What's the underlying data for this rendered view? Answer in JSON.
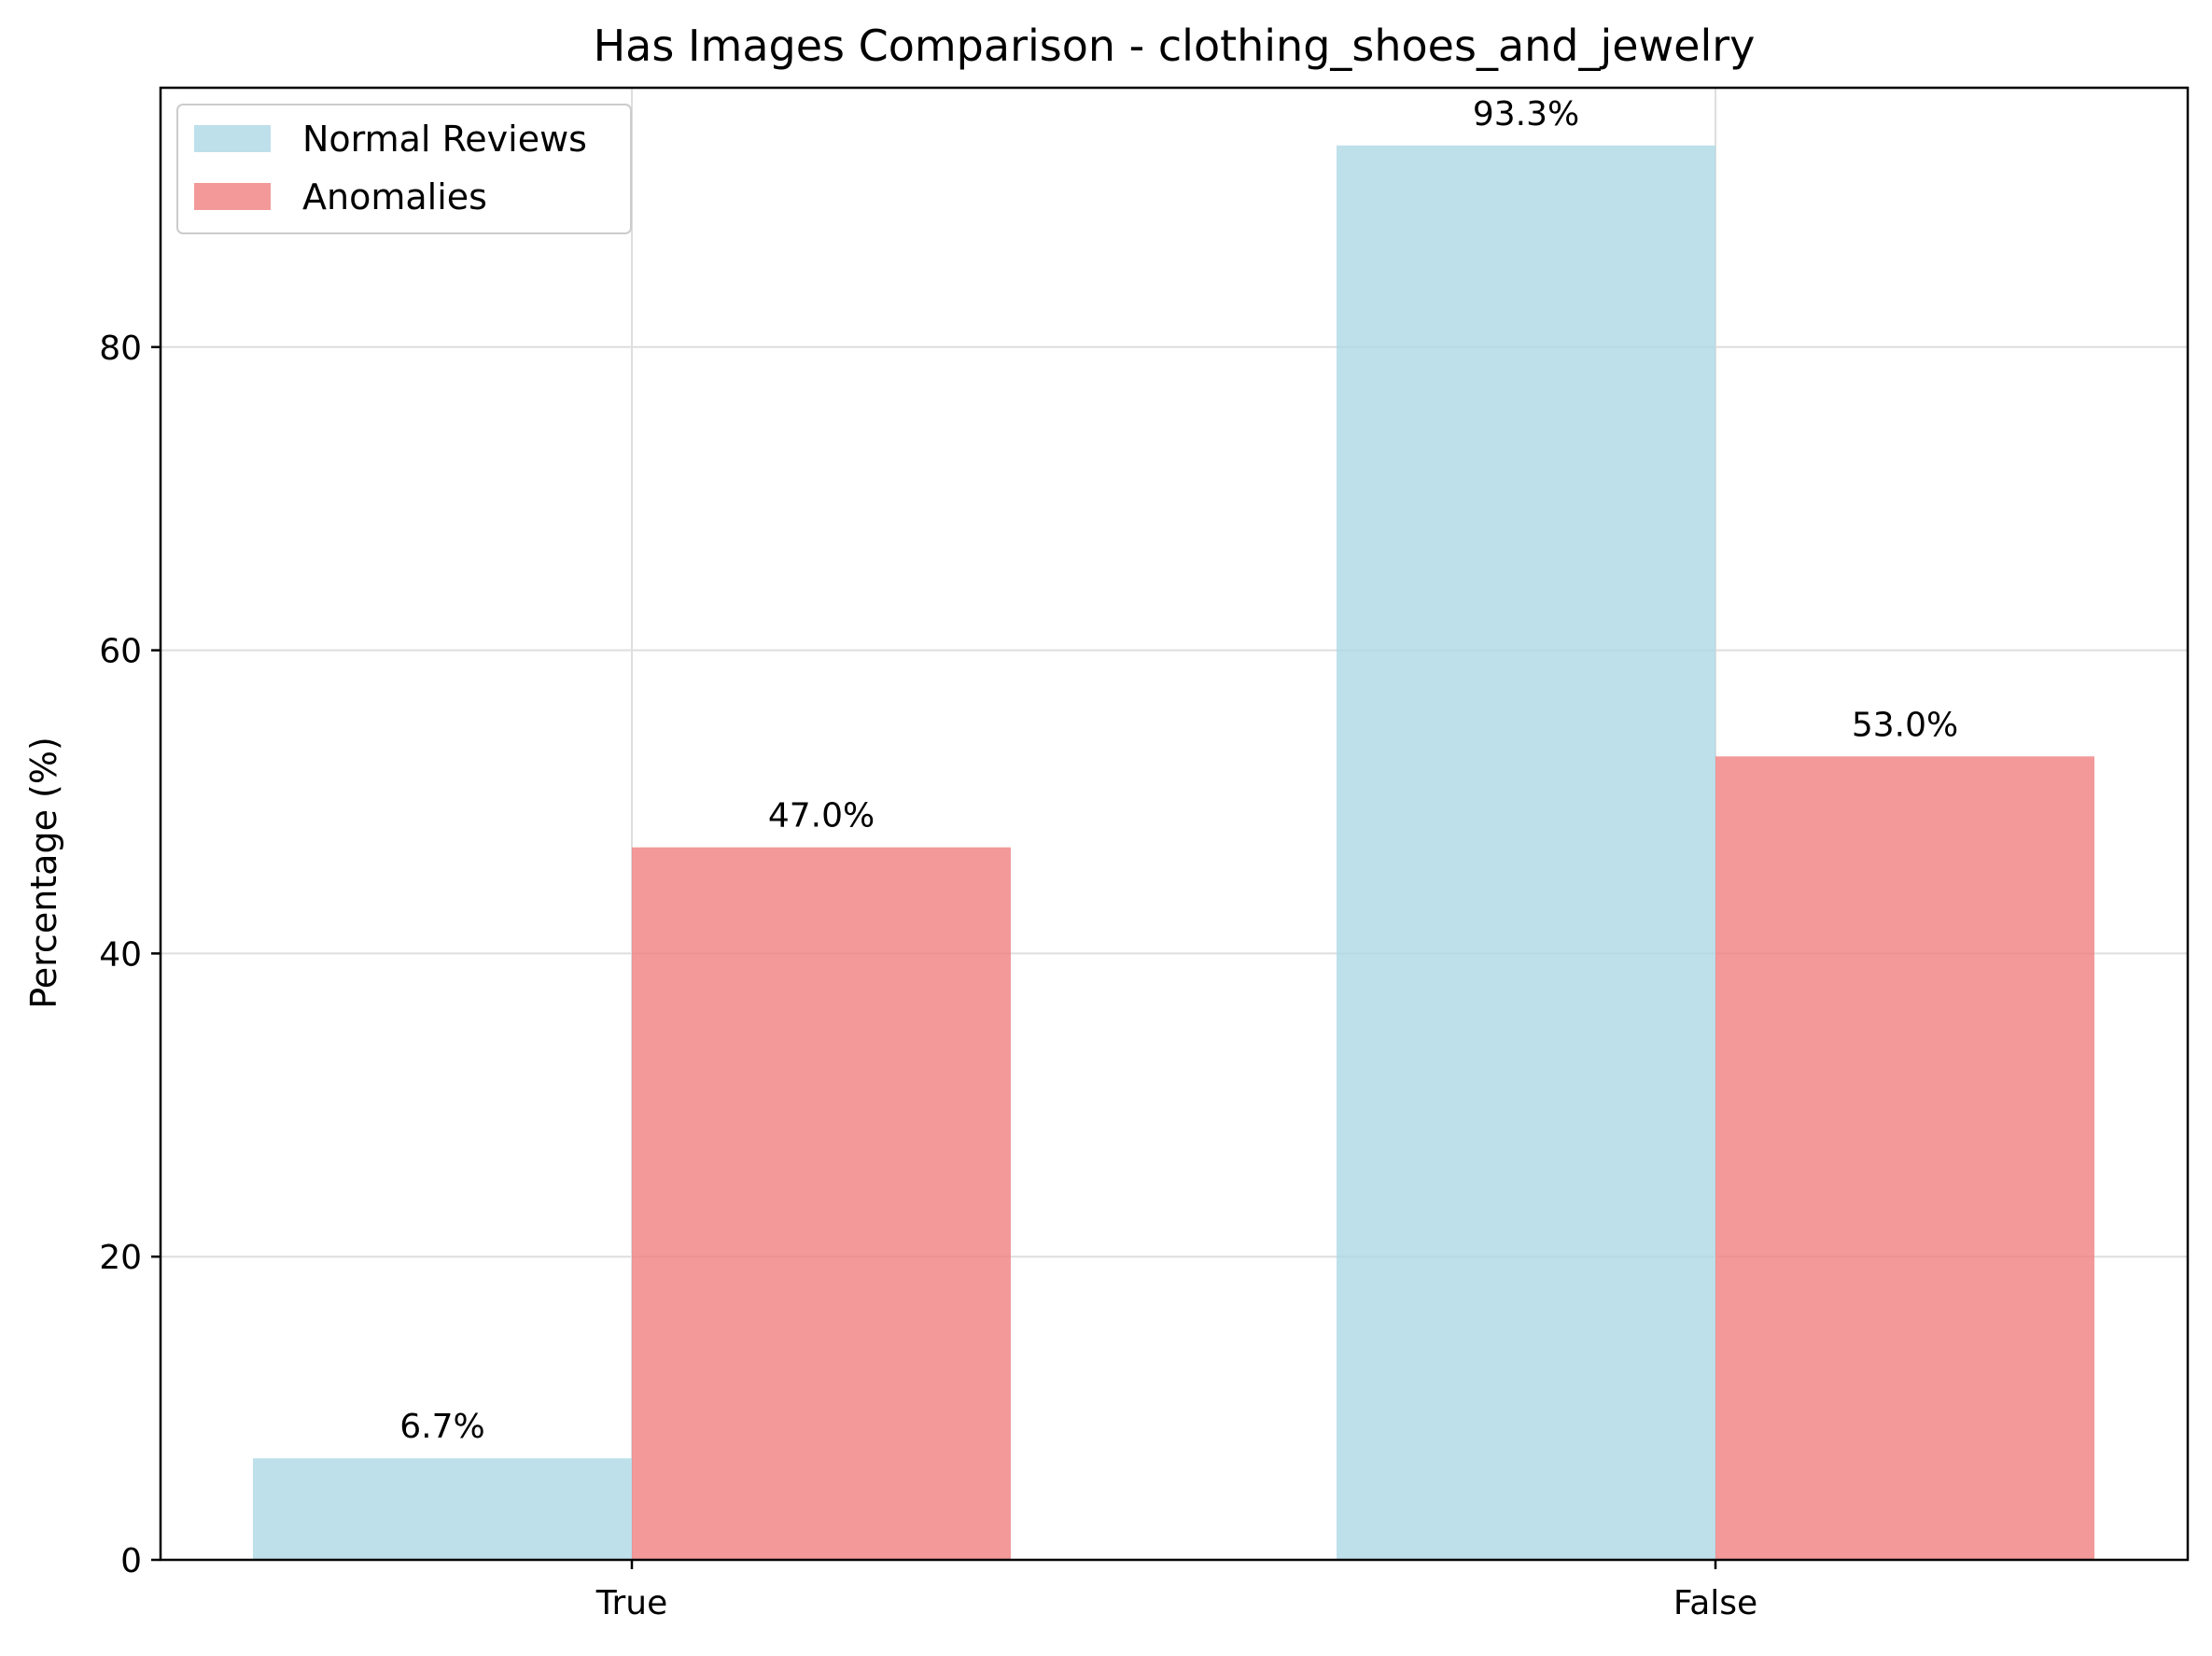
{
  "chart_data": {
    "type": "bar",
    "title": "Has Images Comparison - clothing_shoes_and_jewelry",
    "xlabel": "",
    "ylabel": "Percentage (%)",
    "categories": [
      "True",
      "False"
    ],
    "series": [
      {
        "name": "Normal Reviews",
        "values": [
          6.7,
          93.3
        ],
        "value_labels": [
          "6.7%",
          "93.3%"
        ],
        "color": "#add8e6"
      },
      {
        "name": "Anomalies",
        "values": [
          47.0,
          53.0
        ],
        "value_labels": [
          "47.0%",
          "53.0%"
        ],
        "color": "#f08080"
      }
    ],
    "ylim": [
      0,
      98
    ],
    "yticks": [
      0,
      20,
      40,
      60,
      80
    ],
    "ytick_labels": [
      "0",
      "20",
      "40",
      "60",
      "80"
    ],
    "grid": true,
    "legend_position": "top-left"
  }
}
